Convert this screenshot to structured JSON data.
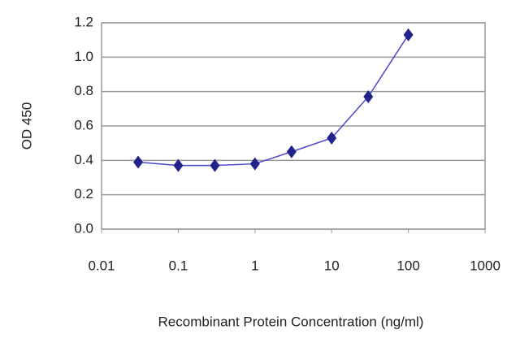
{
  "chart_data": {
    "type": "scatter",
    "xlabel": "Recombinant Protein Concentration (ng/ml)",
    "ylabel": "OD 450",
    "x": [
      0.03,
      0.1,
      0.3,
      1,
      3,
      10,
      30,
      100
    ],
    "values": [
      0.39,
      0.37,
      0.37,
      0.38,
      0.45,
      0.53,
      0.77,
      1.13
    ],
    "color": "#22228a",
    "line_color": "#4a4ac8",
    "xscale": "log",
    "xlim": [
      0.01,
      1000
    ],
    "xticks": [
      0.01,
      0.1,
      1,
      10,
      100,
      1000
    ],
    "ylim": [
      0,
      1.2
    ],
    "yticks": [
      {
        "value": 0,
        "label": "0.0"
      },
      0.2,
      0.4,
      0.6,
      0.8,
      {
        "value": 1,
        "label": "1.0"
      },
      1.2
    ],
    "grid": true
  }
}
